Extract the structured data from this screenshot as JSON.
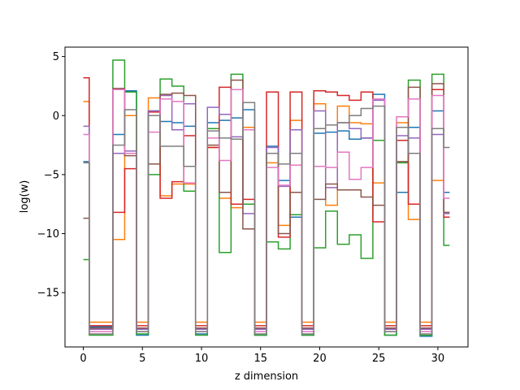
{
  "chart_data": {
    "type": "line",
    "drawstyle": "steps-mid",
    "title": "",
    "xlabel": "z dimension",
    "ylabel": "log(w)",
    "xlim": [
      -1.55,
      32.55
    ],
    "ylim": [
      -19.6,
      5.8
    ],
    "xticks": [
      0,
      5,
      10,
      15,
      20,
      25,
      30
    ],
    "yticks": [
      5,
      0,
      -5,
      -10,
      -15
    ],
    "grid": false,
    "legend": "none",
    "x": [
      0,
      1,
      2,
      3,
      4,
      5,
      6,
      7,
      8,
      9,
      10,
      11,
      12,
      13,
      14,
      15,
      16,
      17,
      18,
      19,
      20,
      21,
      22,
      23,
      24,
      25,
      26,
      27,
      28,
      29,
      30,
      31
    ],
    "series": [
      {
        "color": "#1f77b4",
        "values": [
          -3.9,
          -17.9,
          -17.9,
          -1.6,
          2.1,
          -18.6,
          0.4,
          -0.5,
          -0.6,
          -0.9,
          -18.5,
          -0.6,
          -0.4,
          -0.2,
          0.5,
          -18.6,
          -2.6,
          -5.5,
          -8.6,
          -18.6,
          -1.5,
          -1.4,
          -1.3,
          -2.0,
          -1.9,
          1.8,
          -18.6,
          -6.5,
          -1.0,
          -18.7,
          0.4,
          -6.5
        ]
      },
      {
        "color": "#ff7f0e",
        "values": [
          1.2,
          -17.5,
          -17.5,
          -10.5,
          0.0,
          -17.5,
          1.5,
          -6.8,
          -5.8,
          -5.8,
          -17.5,
          -2.7,
          -7.0,
          -7.8,
          -1.0,
          -17.5,
          -4.0,
          -9.3,
          -0.4,
          -17.5,
          1.0,
          -7.6,
          0.8,
          -0.6,
          -0.7,
          -5.7,
          -17.5,
          -0.6,
          -8.8,
          -17.5,
          -5.5,
          -8.6
        ]
      },
      {
        "color": "#2ca02c",
        "values": [
          -12.2,
          -18.6,
          -18.6,
          4.7,
          2.0,
          -18.5,
          -5.0,
          3.1,
          2.5,
          -6.4,
          -18.6,
          -1.1,
          -11.6,
          3.5,
          -7.5,
          -18.6,
          -10.7,
          -11.3,
          -8.4,
          -18.6,
          -11.2,
          -8.1,
          -10.9,
          -10.1,
          -12.1,
          -2.1,
          -18.6,
          -4.0,
          3.0,
          -18.6,
          3.5,
          -11.0
        ]
      },
      {
        "color": "#d62728",
        "values": [
          3.2,
          -17.8,
          -17.8,
          -8.2,
          -4.5,
          -17.8,
          0.3,
          -7.0,
          -5.6,
          -1.7,
          -17.8,
          -2.7,
          2.4,
          -7.5,
          -7.1,
          -17.8,
          2.0,
          -10.3,
          2.0,
          -17.8,
          2.1,
          2.0,
          1.7,
          1.3,
          2.0,
          -9.0,
          -17.8,
          -2.1,
          -7.5,
          -17.8,
          2.2,
          -8.6
        ]
      },
      {
        "color": "#9467bd",
        "values": [
          -0.9,
          -18.1,
          -18.1,
          -3.2,
          -3.0,
          -18.1,
          0.4,
          1.7,
          -1.2,
          1.0,
          -18.1,
          0.7,
          0.1,
          -1.8,
          -8.3,
          -18.1,
          -2.7,
          -6.0,
          -1.2,
          -18.1,
          0.4,
          -6.1,
          -0.6,
          -1.1,
          -1.9,
          1.3,
          -18.1,
          -1.7,
          -1.9,
          -18.1,
          -1.6,
          -8.3
        ]
      },
      {
        "color": "#8c564b",
        "values": [
          -8.7,
          -18.0,
          -18.0,
          2.3,
          -3.4,
          -18.0,
          -4.1,
          1.8,
          1.9,
          1.7,
          -18.0,
          -2.5,
          -6.5,
          3.0,
          -9.6,
          -18.0,
          -3.2,
          -10.0,
          -6.5,
          -18.0,
          -7.1,
          -5.8,
          -6.3,
          -6.3,
          -6.9,
          -7.6,
          -18.0,
          -3.9,
          2.4,
          -18.0,
          2.7,
          -8.2
        ]
      },
      {
        "color": "#e377c2",
        "values": [
          -1.6,
          -18.3,
          -18.3,
          2.2,
          -3.2,
          -18.3,
          -1.4,
          1.4,
          1.2,
          -5.7,
          -18.3,
          -1.9,
          -3.8,
          2.2,
          -1.2,
          -18.3,
          -4.4,
          -5.9,
          -4.2,
          -18.3,
          -4.3,
          -4.4,
          -3.1,
          -5.4,
          -4.4,
          1.4,
          -18.3,
          -0.1,
          1.4,
          -18.3,
          1.7,
          -7.0
        ]
      },
      {
        "color": "#7f7f7f",
        "values": [
          -4.0,
          -18.5,
          -18.5,
          -2.5,
          0.5,
          -18.3,
          0.0,
          -2.6,
          -2.6,
          -4.3,
          -18.3,
          -1.3,
          -1.9,
          -2.0,
          1.1,
          -18.5,
          -3.2,
          -4.1,
          -3.2,
          -18.5,
          -1.1,
          -0.8,
          -0.6,
          0.0,
          0.6,
          0.8,
          -18.3,
          -1.0,
          -3.2,
          -18.5,
          -1.1,
          -2.7
        ]
      }
    ]
  }
}
